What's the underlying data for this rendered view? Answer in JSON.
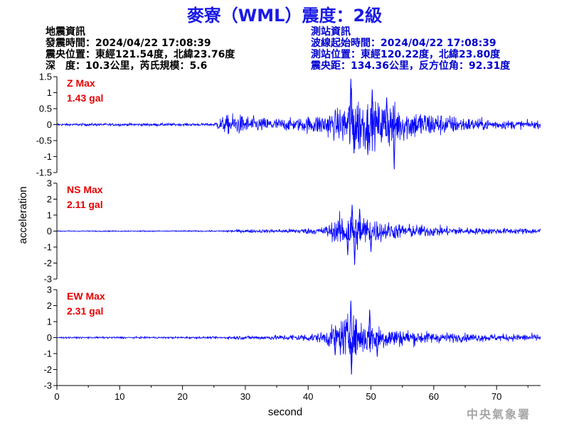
{
  "header": {
    "title": "麥寮（WML）震度：2級"
  },
  "earthquake_info": {
    "heading": "地震資訊",
    "origin_time": "發震時間：2024/04/22 17:08:39",
    "epicenter": "震央位置：東經121.54度，北緯23.76度",
    "depth_magnitude": "深　度：10.3公里，芮氏規模：5.6"
  },
  "station_info": {
    "heading": "測站資訊",
    "wave_start": "波線起始時間：2024/04/22 17:08:39",
    "location": "測站位置：東經120.22度，北緯23.80度",
    "distance_azimuth": "震央距：134.36公里，反方位角：92.31度"
  },
  "footer": {
    "agency": "中央氣象署"
  },
  "chart_data": {
    "type": "line",
    "xlabel": "second",
    "ylabel": "acceleration",
    "xlim": [
      0,
      77
    ],
    "x_ticks": [
      0,
      10,
      20,
      30,
      40,
      50,
      60,
      70
    ],
    "grid": false,
    "colors": {
      "trace": "#0000ff",
      "max_label": "#e60000",
      "axis": "#000000"
    },
    "panels": [
      {
        "name": "Z Max",
        "max_label": "1.43 gal",
        "max_value": 1.43,
        "ylim": [
          -1.5,
          1.5
        ],
        "y_ticks": [
          -1.5,
          -1,
          -0.5,
          0,
          0.5,
          1,
          1.5
        ],
        "y_tick_labels": [
          "-1.5",
          "-1",
          "-0.5",
          "0",
          "0.5",
          "1",
          "1.5"
        ],
        "envelope": [
          [
            0,
            0.05
          ],
          [
            25,
            0.06
          ],
          [
            26,
            0.3
          ],
          [
            28,
            0.45
          ],
          [
            32,
            0.3
          ],
          [
            38,
            0.25
          ],
          [
            42,
            0.45
          ],
          [
            45,
            0.65
          ],
          [
            47,
            1.43
          ],
          [
            50,
            0.9
          ],
          [
            53,
            1.0
          ],
          [
            55,
            0.7
          ],
          [
            60,
            0.5
          ],
          [
            65,
            0.3
          ],
          [
            70,
            0.2
          ],
          [
            77,
            0.15
          ]
        ],
        "peaks": [
          [
            46.8,
            1.43
          ],
          [
            47.3,
            -0.9
          ],
          [
            53.7,
            -1.4
          ],
          [
            50.2,
            1.1
          ],
          [
            49.5,
            -0.95
          ],
          [
            52.5,
            0.85
          ]
        ]
      },
      {
        "name": "NS Max",
        "max_label": "2.11 gal",
        "max_value": 2.11,
        "ylim": [
          -3,
          3
        ],
        "y_ticks": [
          -3,
          -2,
          -1,
          0,
          1,
          2,
          3
        ],
        "y_tick_labels": [
          "-3",
          "-2",
          "-1",
          "0",
          "1",
          "2",
          "3"
        ],
        "envelope": [
          [
            0,
            0.04
          ],
          [
            26,
            0.05
          ],
          [
            27,
            0.12
          ],
          [
            35,
            0.15
          ],
          [
            42,
            0.3
          ],
          [
            44,
            0.8
          ],
          [
            46,
            1.7
          ],
          [
            48,
            1.5
          ],
          [
            50,
            1.1
          ],
          [
            52,
            0.8
          ],
          [
            55,
            0.6
          ],
          [
            60,
            0.45
          ],
          [
            65,
            0.3
          ],
          [
            70,
            0.25
          ],
          [
            77,
            0.25
          ]
        ],
        "peaks": [
          [
            47.0,
            1.65
          ],
          [
            47.4,
            -2.11
          ],
          [
            46.3,
            -1.5
          ],
          [
            48.2,
            1.4
          ],
          [
            50.0,
            -1.3
          ]
        ]
      },
      {
        "name": "EW Max",
        "max_label": "2.31 gal",
        "max_value": 2.31,
        "ylim": [
          -3,
          3
        ],
        "y_ticks": [
          -3,
          -2,
          -1,
          0,
          1,
          2,
          3
        ],
        "y_tick_labels": [
          "-3",
          "-2",
          "-1",
          "0",
          "1",
          "2",
          "3"
        ],
        "envelope": [
          [
            0,
            0.07
          ],
          [
            26,
            0.08
          ],
          [
            28,
            0.15
          ],
          [
            35,
            0.2
          ],
          [
            42,
            0.4
          ],
          [
            44,
            1.0
          ],
          [
            46,
            1.8
          ],
          [
            48,
            1.6
          ],
          [
            50,
            1.3
          ],
          [
            52,
            1.0
          ],
          [
            55,
            0.7
          ],
          [
            60,
            0.45
          ],
          [
            65,
            0.35
          ],
          [
            70,
            0.3
          ],
          [
            77,
            0.3
          ]
        ],
        "peaks": [
          [
            46.8,
            2.31
          ],
          [
            46.9,
            -2.31
          ],
          [
            44.3,
            -1.1
          ],
          [
            49.8,
            1.75
          ],
          [
            51.0,
            -1.2
          ]
        ]
      }
    ]
  }
}
